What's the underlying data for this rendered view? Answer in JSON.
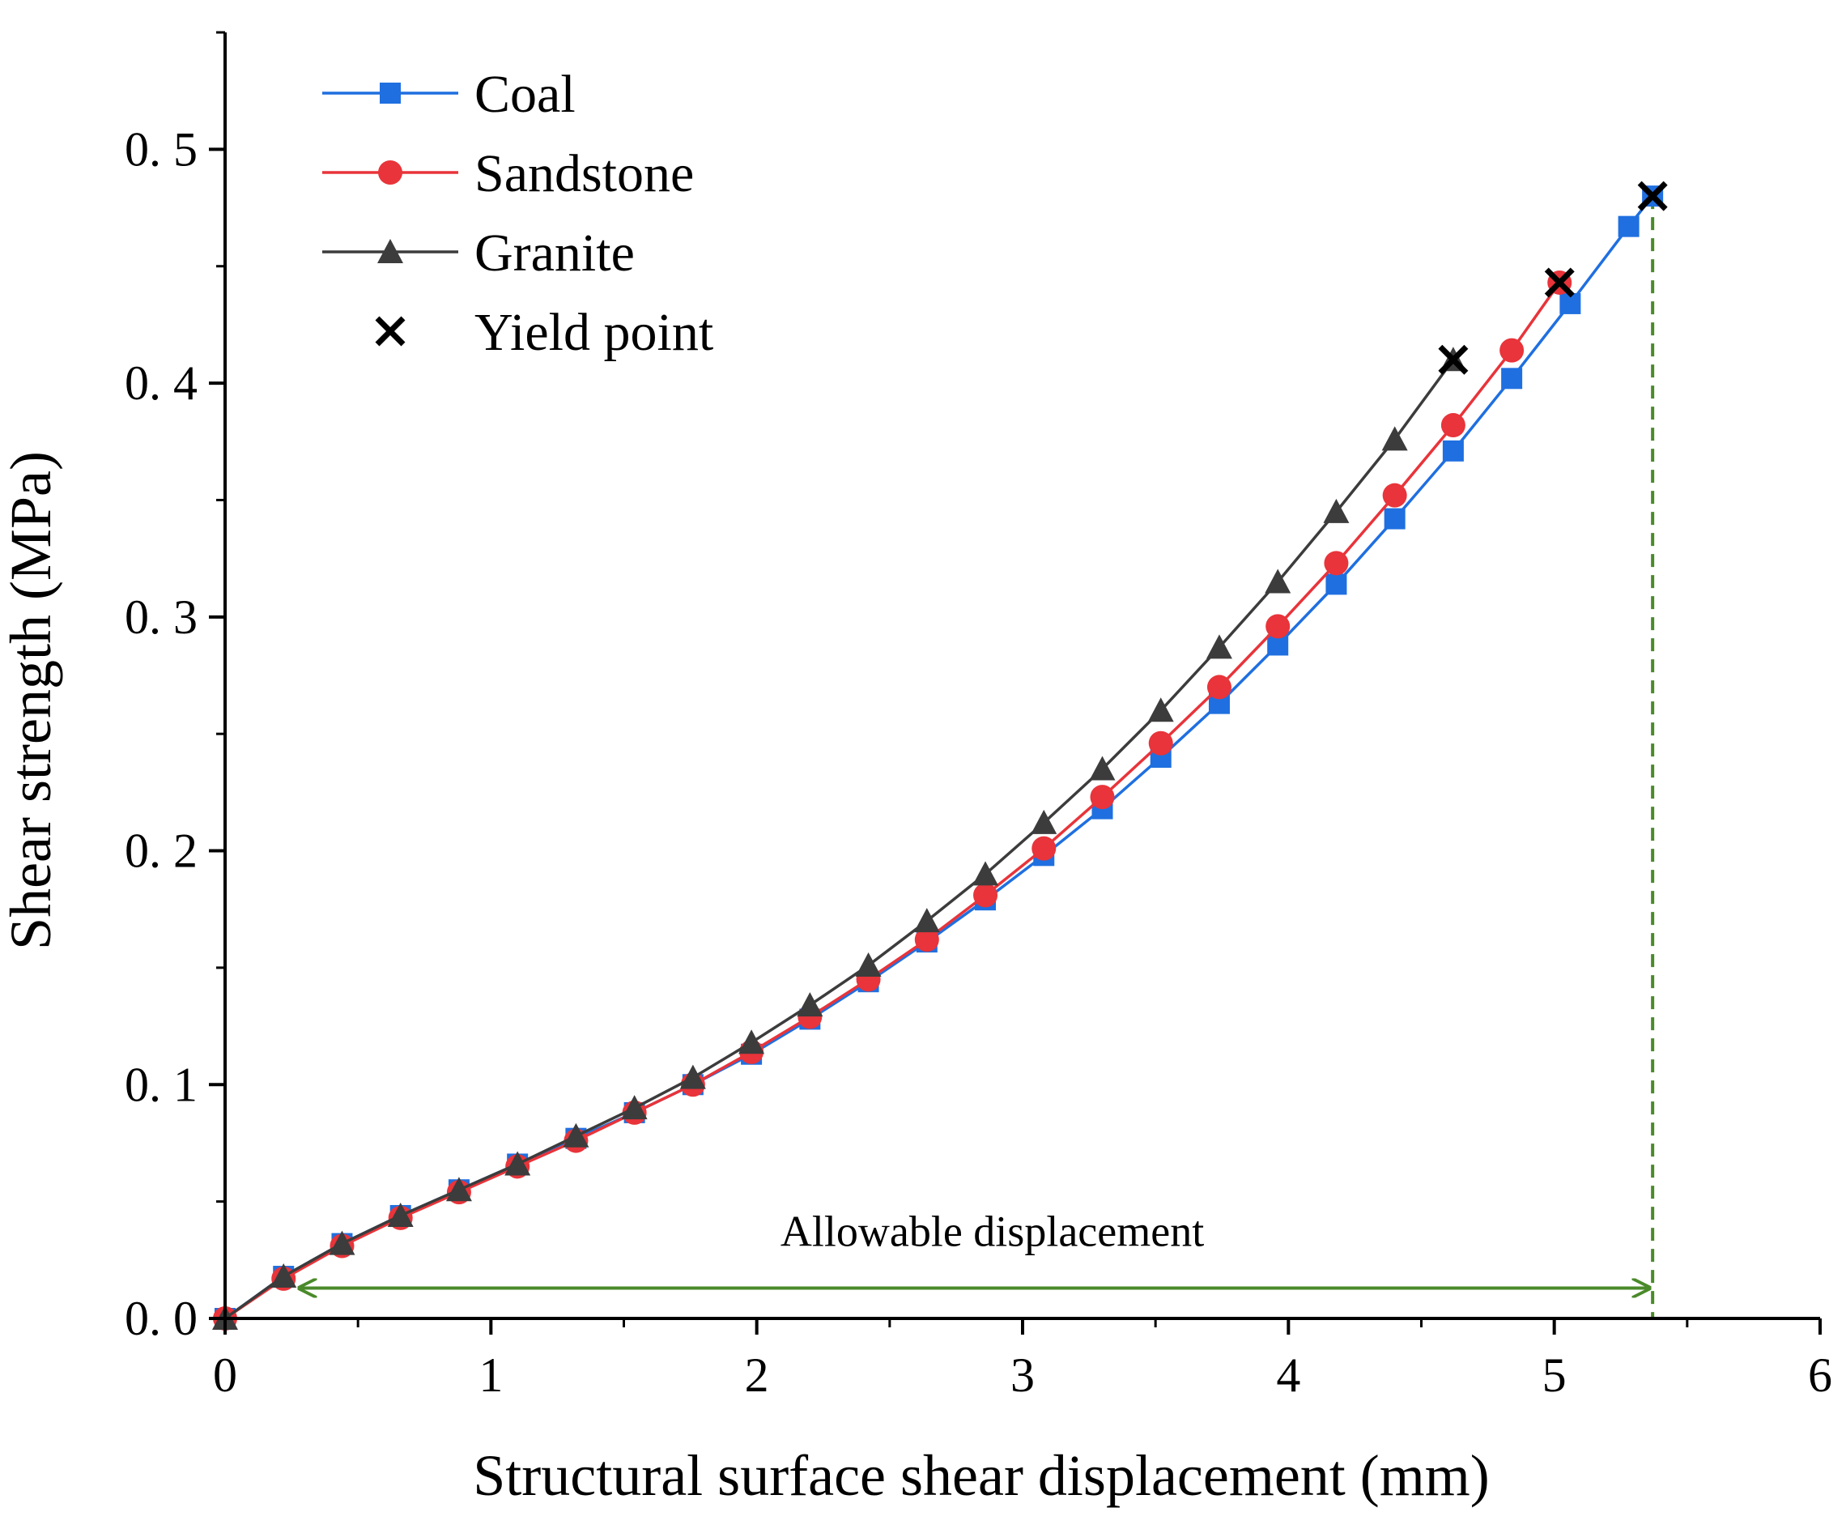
{
  "chart_data": {
    "type": "line",
    "title": "",
    "xlabel": "Structural surface shear displacement (mm)",
    "ylabel": "Shear strength (MPa)",
    "xlim": [
      0,
      6
    ],
    "ylim": [
      0,
      0.55
    ],
    "xticks": [
      0,
      1,
      2,
      3,
      4,
      5,
      6
    ],
    "xtick_labels": [
      "0",
      "1",
      "2",
      "3",
      "4",
      "5",
      "6"
    ],
    "yticks": [
      0,
      0.1,
      0.2,
      0.3,
      0.4,
      0.5
    ],
    "ytick_labels": [
      "0. 0",
      "0. 1",
      "0. 2",
      "0. 3",
      "0. 4",
      "0. 5"
    ],
    "legend_position": "top-left",
    "grid": false,
    "series": [
      {
        "name": "Coal",
        "color": "#1f6fe0",
        "marker": "square",
        "x": [
          0,
          0.22,
          0.44,
          0.66,
          0.88,
          1.1,
          1.32,
          1.54,
          1.76,
          1.98,
          2.2,
          2.42,
          2.64,
          2.86,
          3.08,
          3.3,
          3.52,
          3.74,
          3.96,
          4.18,
          4.4,
          4.62,
          4.84,
          5.06,
          5.28,
          5.37
        ],
        "y": [
          0,
          0.018,
          0.032,
          0.044,
          0.055,
          0.066,
          0.077,
          0.088,
          0.1,
          0.113,
          0.128,
          0.144,
          0.161,
          0.179,
          0.198,
          0.218,
          0.24,
          0.263,
          0.288,
          0.314,
          0.342,
          0.371,
          0.402,
          0.434,
          0.467,
          0.48
        ]
      },
      {
        "name": "Sandstone",
        "color": "#e8343a",
        "marker": "circle",
        "x": [
          0,
          0.22,
          0.44,
          0.66,
          0.88,
          1.1,
          1.32,
          1.54,
          1.76,
          1.98,
          2.2,
          2.42,
          2.64,
          2.86,
          3.08,
          3.3,
          3.52,
          3.74,
          3.96,
          4.18,
          4.4,
          4.62,
          4.84,
          5.02
        ],
        "y": [
          0,
          0.017,
          0.031,
          0.043,
          0.054,
          0.065,
          0.076,
          0.088,
          0.1,
          0.114,
          0.129,
          0.145,
          0.162,
          0.181,
          0.201,
          0.223,
          0.246,
          0.27,
          0.296,
          0.323,
          0.352,
          0.382,
          0.414,
          0.443
        ]
      },
      {
        "name": "Granite",
        "color": "#3c3c3c",
        "marker": "triangle",
        "x": [
          0,
          0.22,
          0.44,
          0.66,
          0.88,
          1.1,
          1.32,
          1.54,
          1.76,
          1.98,
          2.2,
          2.42,
          2.64,
          2.86,
          3.08,
          3.3,
          3.52,
          3.74,
          3.96,
          4.18,
          4.4,
          4.62
        ],
        "y": [
          0,
          0.018,
          0.032,
          0.044,
          0.055,
          0.066,
          0.078,
          0.09,
          0.103,
          0.118,
          0.134,
          0.151,
          0.17,
          0.19,
          0.212,
          0.235,
          0.26,
          0.287,
          0.315,
          0.345,
          0.376,
          0.41
        ]
      }
    ],
    "yield_points": {
      "name": "Yield point",
      "color": "#000000",
      "marker": "x",
      "points": [
        {
          "x": 4.62,
          "y": 0.41
        },
        {
          "x": 5.02,
          "y": 0.443
        },
        {
          "x": 5.37,
          "y": 0.48
        }
      ]
    },
    "annotation": {
      "text": "Allowable displacement",
      "color": "#4a8a2a",
      "arrow_from_x": 0.28,
      "arrow_to_x": 5.37,
      "arrow_y": 0.013,
      "vline_x": 5.37,
      "vline_top_y": 0.48
    }
  }
}
